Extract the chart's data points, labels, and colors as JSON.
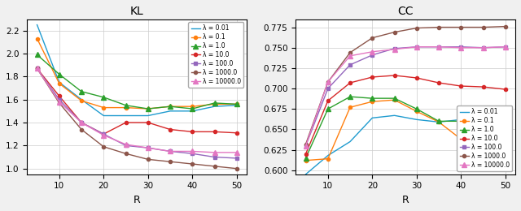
{
  "R_values": [
    5,
    10,
    15,
    20,
    25,
    30,
    35,
    40,
    45,
    50
  ],
  "KL": {
    "0.01": [
      2.25,
      1.75,
      1.6,
      1.46,
      1.46,
      1.46,
      1.5,
      1.5,
      1.54,
      1.55
    ],
    "0.1": [
      2.13,
      1.74,
      1.59,
      1.53,
      1.53,
      1.52,
      1.54,
      1.54,
      1.56,
      1.56
    ],
    "1.0": [
      1.99,
      1.82,
      1.67,
      1.62,
      1.55,
      1.52,
      1.54,
      1.52,
      1.57,
      1.56
    ],
    "10.0": [
      1.87,
      1.63,
      1.4,
      1.3,
      1.4,
      1.4,
      1.34,
      1.32,
      1.32,
      1.31
    ],
    "100.0": [
      1.87,
      1.6,
      1.4,
      1.3,
      1.2,
      1.18,
      1.15,
      1.13,
      1.1,
      1.09
    ],
    "1000.0": [
      1.87,
      1.57,
      1.34,
      1.19,
      1.13,
      1.08,
      1.06,
      1.04,
      1.02,
      1.0
    ],
    "10000.0": [
      1.87,
      1.58,
      1.4,
      1.29,
      1.21,
      1.18,
      1.15,
      1.15,
      1.14,
      1.14
    ]
  },
  "CC": {
    "0.01": [
      0.595,
      0.618,
      0.635,
      0.664,
      0.667,
      0.662,
      0.659,
      0.662,
      0.66,
      0.657
    ],
    "0.1": [
      0.612,
      0.614,
      0.677,
      0.684,
      0.686,
      0.672,
      0.659,
      0.638,
      0.636,
      0.633
    ],
    "1.0": [
      0.615,
      0.675,
      0.69,
      0.688,
      0.688,
      0.675,
      0.66,
      0.66,
      0.651,
      0.648
    ],
    "10.0": [
      0.62,
      0.685,
      0.707,
      0.714,
      0.716,
      0.713,
      0.707,
      0.703,
      0.702,
      0.699
    ],
    "100.0": [
      0.63,
      0.7,
      0.729,
      0.741,
      0.749,
      0.751,
      0.751,
      0.751,
      0.75,
      0.751
    ],
    "1000.0": [
      0.632,
      0.708,
      0.744,
      0.762,
      0.769,
      0.774,
      0.775,
      0.775,
      0.775,
      0.776
    ],
    "10000.0": [
      0.63,
      0.708,
      0.74,
      0.745,
      0.748,
      0.751,
      0.751,
      0.75,
      0.75,
      0.751
    ]
  },
  "lambdas": [
    "0.01",
    "0.1",
    "1.0",
    "10.0",
    "100.0",
    "1000.0",
    "10000.0"
  ],
  "lambda_labels": [
    "λ = 0.01",
    "λ = 0.1",
    "λ = 1.0",
    "λ = 10.0",
    "λ = 100.0",
    "λ = 1000.0",
    "λ = 10000.0"
  ],
  "colors": [
    "#1f9bcf",
    "#ff7f0e",
    "#2ca02c",
    "#d62728",
    "#9467bd",
    "#8c564b",
    "#e377c2"
  ],
  "markers": [
    null,
    "o",
    "^",
    "o",
    "s",
    "o",
    "^"
  ],
  "markersizes": [
    4,
    3,
    4,
    3,
    3,
    3,
    4
  ],
  "KL_ylim": [
    0.95,
    2.3
  ],
  "CC_ylim": [
    0.595,
    0.785
  ],
  "KL_yticks": [
    1.0,
    1.2,
    1.4,
    1.6,
    1.8,
    2.0,
    2.2
  ],
  "CC_yticks": [
    0.6,
    0.625,
    0.65,
    0.675,
    0.7,
    0.725,
    0.75,
    0.775
  ],
  "xticks": [
    10,
    20,
    30,
    40,
    50
  ],
  "figsize": [
    6.4,
    2.6
  ],
  "dpi": 100
}
